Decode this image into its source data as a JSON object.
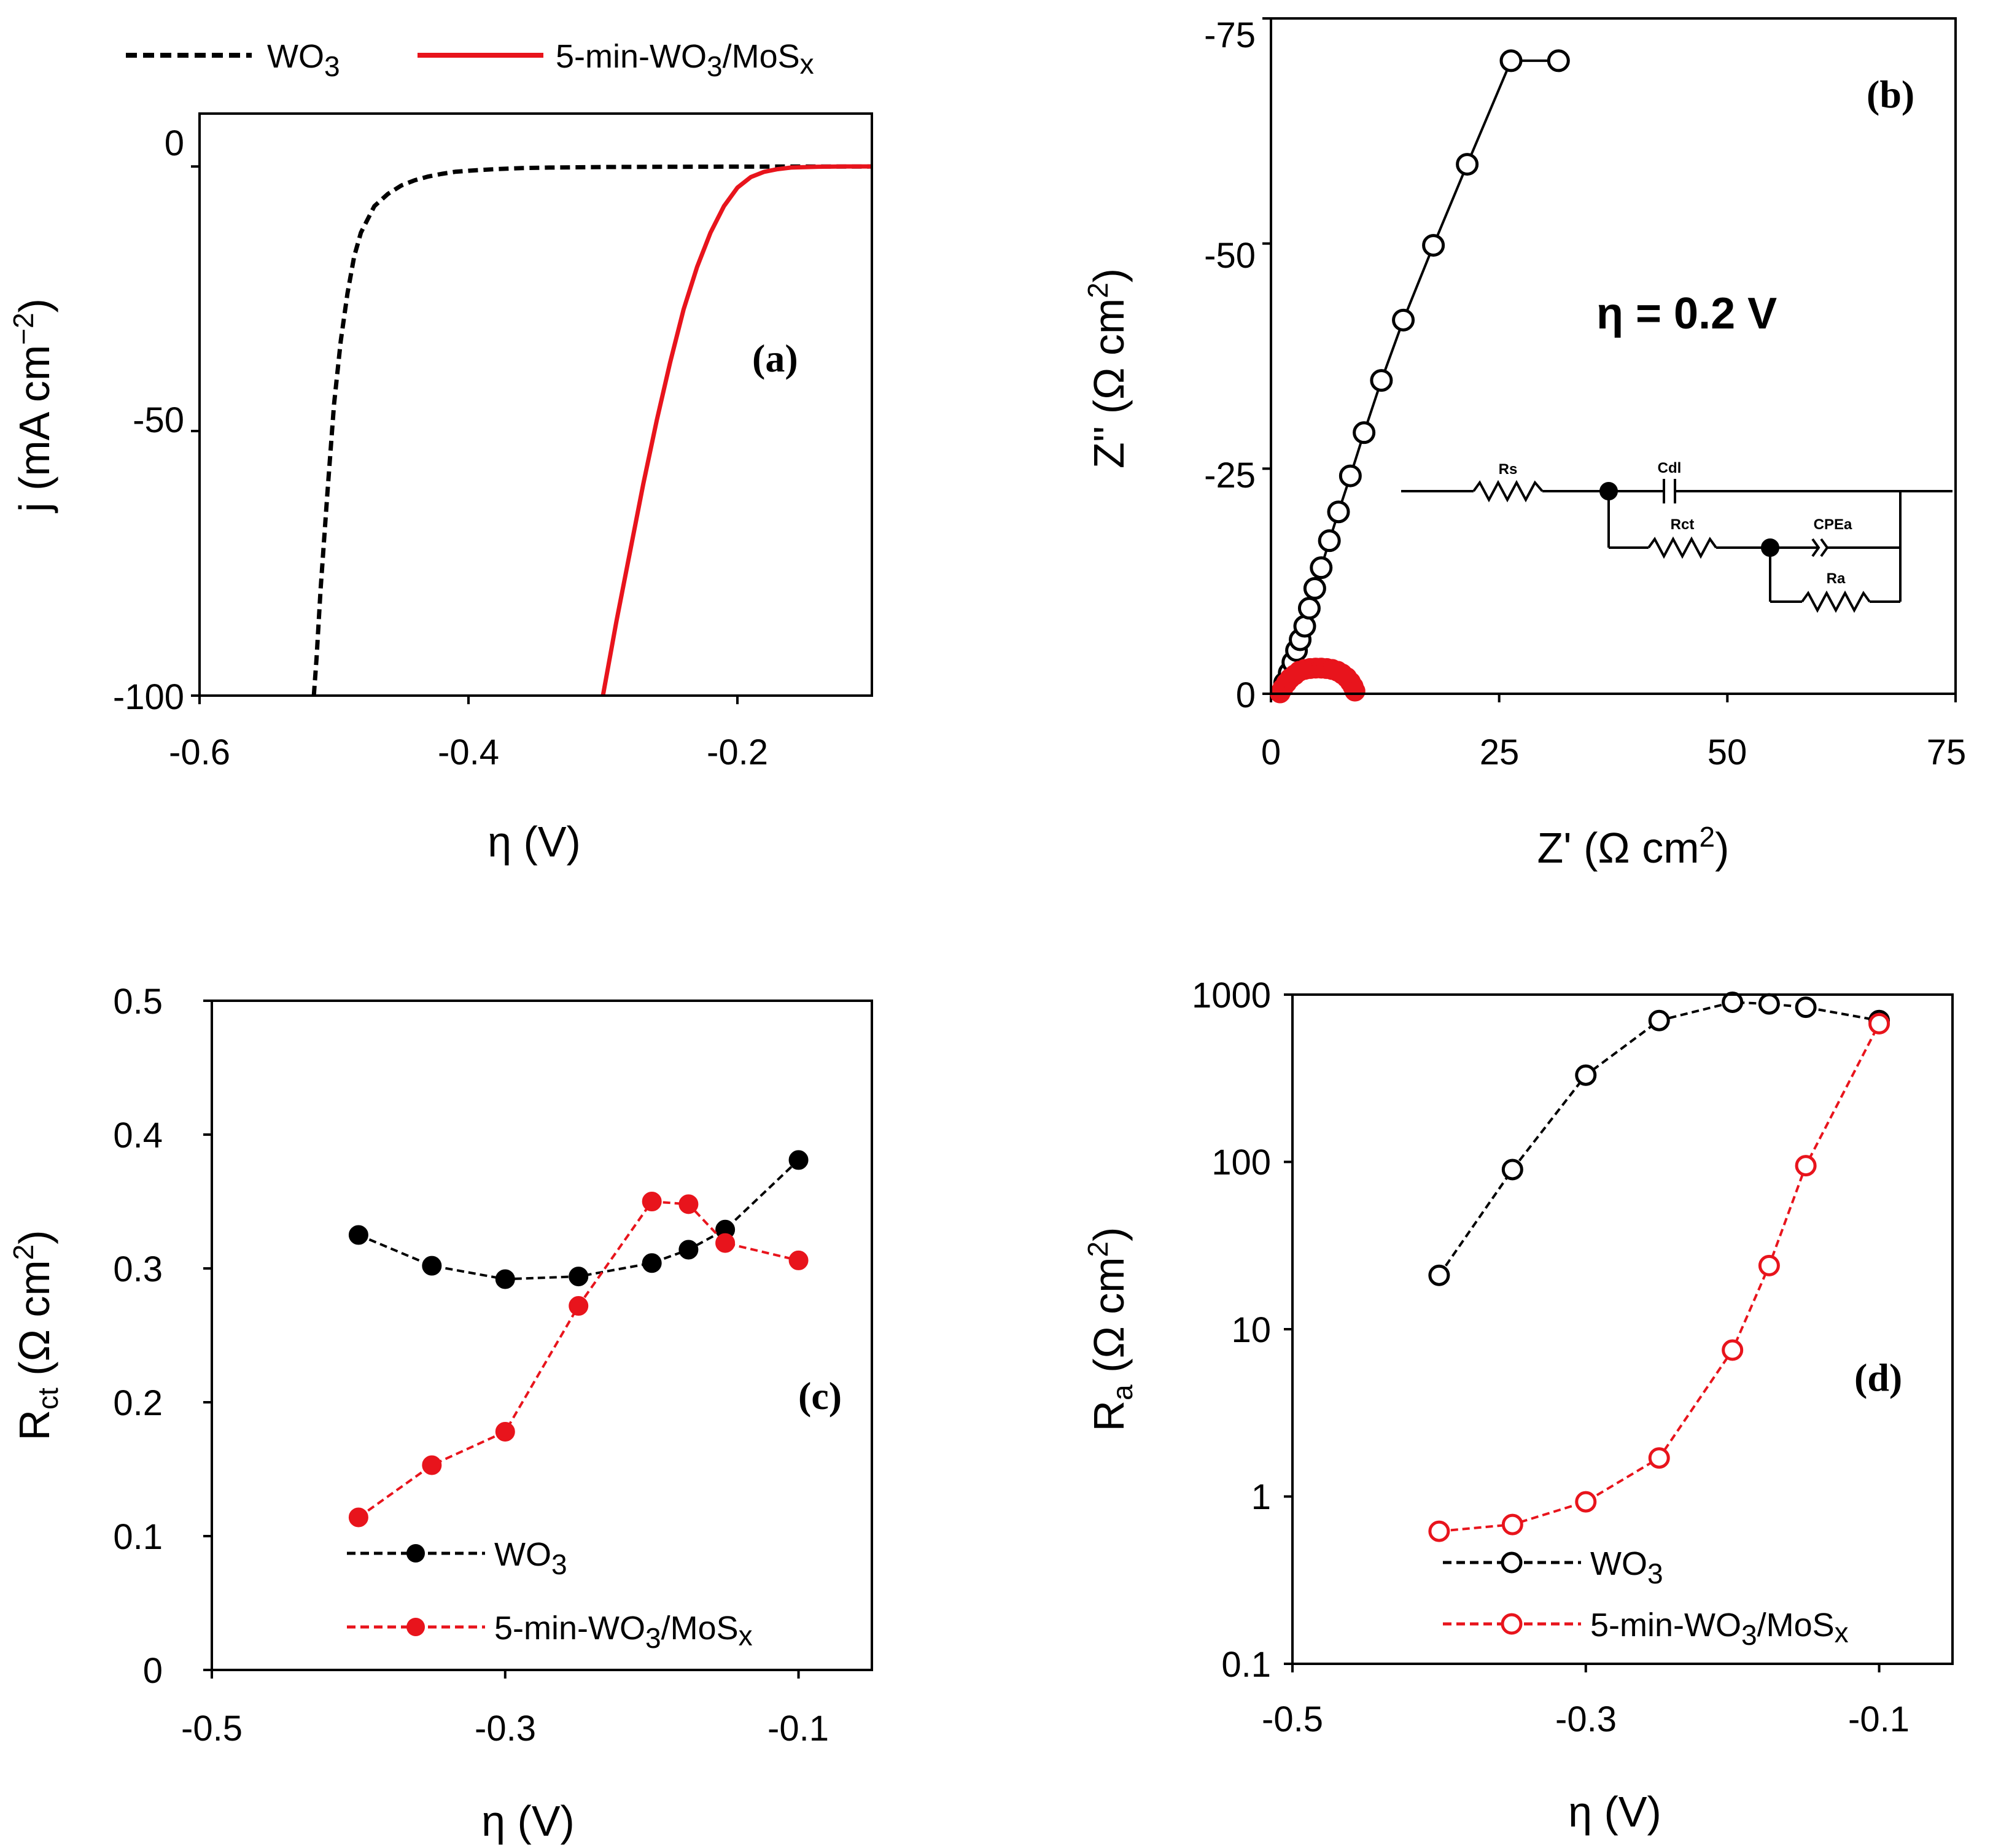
{
  "colors": {
    "wo3": "#000000",
    "mos": "#e8141c",
    "frame": "#000000"
  },
  "chart_data": [
    {
      "id": "a",
      "type": "line",
      "panel_label": "(a)",
      "xlabel": "η (V)",
      "ylabel_main": "j (mA cm",
      "ylabel_sup": "−2",
      "ylabel_close": ")",
      "xlim": [
        -0.6,
        -0.1
      ],
      "ylim": [
        -100,
        10
      ],
      "xticks": [
        -0.6,
        -0.4,
        -0.2
      ],
      "xtick_labels": [
        "-0.6",
        "-0.4",
        "-0.2"
      ],
      "yticks": [
        -100,
        -50,
        0
      ],
      "ytick_labels": [
        "-100",
        "-50",
        "0"
      ],
      "legend": {
        "wo3": {
          "text": "WO",
          "sub": "3"
        },
        "mos": {
          "prefix": "5-min-WO",
          "sub": "3",
          "suffix": "/MoS",
          "tail": "x"
        }
      },
      "series": [
        {
          "name": "WO3",
          "style": "dashed",
          "color": "#000000",
          "x": [
            -0.515,
            -0.513,
            -0.51,
            -0.505,
            -0.5,
            -0.495,
            -0.49,
            -0.485,
            -0.48,
            -0.47,
            -0.46,
            -0.45,
            -0.44,
            -0.43,
            -0.42,
            -0.41,
            -0.4,
            -0.38,
            -0.36,
            -0.34,
            -0.3,
            -0.25,
            -0.2,
            -0.15,
            -0.1
          ],
          "y": [
            -100,
            -93,
            -80,
            -62,
            -45,
            -33,
            -24,
            -17,
            -12.5,
            -7.5,
            -5.2,
            -3.6,
            -2.6,
            -1.9,
            -1.4,
            -1.0,
            -0.8,
            -0.5,
            -0.3,
            -0.2,
            -0.1,
            -0.05,
            -0.02,
            -0.01,
            0
          ]
        },
        {
          "name": "5-min-WO3/MoSx",
          "style": "solid",
          "color": "#e8141c",
          "x": [
            -0.3,
            -0.29,
            -0.28,
            -0.27,
            -0.26,
            -0.25,
            -0.24,
            -0.23,
            -0.22,
            -0.21,
            -0.2,
            -0.19,
            -0.18,
            -0.17,
            -0.16,
            -0.14,
            -0.12,
            -0.1
          ],
          "y": [
            -100,
            -86,
            -73,
            -60,
            -48,
            -37,
            -27,
            -19,
            -12.5,
            -7.5,
            -4.0,
            -2.0,
            -1.0,
            -0.5,
            -0.2,
            -0.05,
            0,
            0
          ]
        }
      ]
    },
    {
      "id": "b",
      "type": "scatter",
      "panel_label": "(b)",
      "annotation": "η = 0.2 V",
      "xlabel_main": "Z' (Ω cm",
      "xlabel_sup": "2",
      "xlabel_close": ")",
      "ylabel_main": "Z'' (Ω cm",
      "ylabel_sup": "2",
      "ylabel_close": ")",
      "xlim": [
        0,
        75
      ],
      "ylim": [
        0,
        -75
      ],
      "xticks": [
        0,
        25,
        50,
        75
      ],
      "xtick_labels": [
        "0",
        "25",
        "50",
        "75"
      ],
      "yticks": [
        0,
        -25,
        -50,
        -75
      ],
      "ytick_labels": [
        "0",
        "-25",
        "-50",
        "-75"
      ],
      "circuit_labels": {
        "rs": "Rs",
        "cdl": "Cdl",
        "rct": "Rct",
        "cpe": "CPEa",
        "ra": "Ra"
      },
      "series": [
        {
          "name": "WO3",
          "color": "#000000",
          "marker": "open-circle",
          "x": [
            1.5,
            2.0,
            2.4,
            2.8,
            3.2,
            3.7,
            4.2,
            4.8,
            5.5,
            6.4,
            7.4,
            8.7,
            10.2,
            12.1,
            14.5,
            17.8,
            21.5,
            26.3,
            31.5
          ],
          "y": [
            -1.2,
            -2.3,
            -3.5,
            -4.8,
            -6.0,
            -7.5,
            -9.5,
            -11.7,
            -14.0,
            -17.0,
            -20.2,
            -24.2,
            -29.0,
            -34.8,
            -41.5,
            -49.8,
            -58.8,
            -70.3,
            -70.3
          ]
        },
        {
          "name": "5-min-WO3/MoSx",
          "color": "#e8141c",
          "marker": "filled-circle",
          "x": [
            1.0,
            1.3,
            1.7,
            2.1,
            2.6,
            3.1,
            3.7,
            4.3,
            4.9,
            5.5,
            6.1,
            6.7,
            7.3,
            7.8,
            8.3,
            8.7,
            9.0,
            9.2
          ],
          "y": [
            -0.1,
            -0.6,
            -1.2,
            -1.7,
            -2.1,
            -2.5,
            -2.7,
            -2.8,
            -2.85,
            -2.85,
            -2.8,
            -2.7,
            -2.5,
            -2.2,
            -1.8,
            -1.3,
            -0.8,
            -0.3
          ]
        }
      ]
    },
    {
      "id": "c",
      "type": "line",
      "panel_label": "(c)",
      "xlabel": "η (V)",
      "ylabel_main": "R",
      "ylabel_sub": "ct",
      "ylabel_rest": " (Ω cm",
      "ylabel_sup": "2",
      "ylabel_close": ")",
      "xlim": [
        -0.5,
        -0.05
      ],
      "ylim": [
        0,
        0.5
      ],
      "xticks": [
        -0.5,
        -0.3,
        -0.1
      ],
      "xtick_labels": [
        "-0.5",
        "-0.3",
        "-0.1"
      ],
      "yticks": [
        0,
        0.1,
        0.2,
        0.3,
        0.4,
        0.5
      ],
      "ytick_labels": [
        "0",
        "0.1",
        "0.2",
        "0.3",
        "0.4",
        "0.5"
      ],
      "legend": {
        "wo3": {
          "text": "WO",
          "sub": "3"
        },
        "mos": {
          "prefix": "5-min-WO",
          "sub": "3",
          "suffix": "/MoS",
          "tail": "x"
        }
      },
      "series": [
        {
          "name": "WO3",
          "color": "#000000",
          "marker": "filled-circle",
          "style": "dashed",
          "x": [
            -0.4,
            -0.35,
            -0.3,
            -0.25,
            -0.2,
            -0.175,
            -0.15,
            -0.1
          ],
          "y": [
            0.325,
            0.302,
            0.292,
            0.294,
            0.304,
            0.314,
            0.329,
            0.381
          ]
        },
        {
          "name": "5-min-WO3/MoSx",
          "color": "#e8141c",
          "marker": "filled-circle",
          "style": "dashed",
          "x": [
            -0.4,
            -0.35,
            -0.3,
            -0.25,
            -0.2,
            -0.175,
            -0.15,
            -0.1
          ],
          "y": [
            0.114,
            0.153,
            0.178,
            0.272,
            0.35,
            0.348,
            0.319,
            0.306
          ]
        }
      ]
    },
    {
      "id": "d",
      "type": "line",
      "panel_label": "(d)",
      "xlabel": "η (V)",
      "ylabel_main": "R",
      "ylabel_sub": "a",
      "ylabel_rest": " (Ω cm",
      "ylabel_sup": "2",
      "ylabel_close": ")",
      "yscale": "log",
      "xlim": [
        -0.5,
        -0.05
      ],
      "ylim": [
        0.1,
        1000
      ],
      "xticks": [
        -0.5,
        -0.3,
        -0.1
      ],
      "xtick_labels": [
        "-0.5",
        "-0.3",
        "-0.1"
      ],
      "yticks": [
        0.1,
        1,
        10,
        100,
        1000
      ],
      "ytick_labels": [
        "0.1",
        "1",
        "10",
        "100",
        "1000"
      ],
      "legend": {
        "wo3": {
          "text": "WO",
          "sub": "3"
        },
        "mos": {
          "prefix": "5-min-WO",
          "sub": "3",
          "suffix": "/MoS",
          "tail": "x"
        }
      },
      "series": [
        {
          "name": "WO3",
          "color": "#000000",
          "marker": "open-circle",
          "style": "dashed",
          "x": [
            -0.4,
            -0.35,
            -0.3,
            -0.25,
            -0.2,
            -0.175,
            -0.15,
            -0.1
          ],
          "y": [
            21,
            90,
            330,
            700,
            900,
            880,
            840,
            700
          ]
        },
        {
          "name": "5-min-WO3/MoSx",
          "color": "#e8141c",
          "marker": "open-circle",
          "style": "dashed",
          "x": [
            -0.4,
            -0.35,
            -0.3,
            -0.25,
            -0.2,
            -0.175,
            -0.15,
            -0.1
          ],
          "y": [
            0.62,
            0.68,
            0.93,
            1.7,
            7.5,
            24,
            95,
            670
          ]
        }
      ]
    }
  ]
}
